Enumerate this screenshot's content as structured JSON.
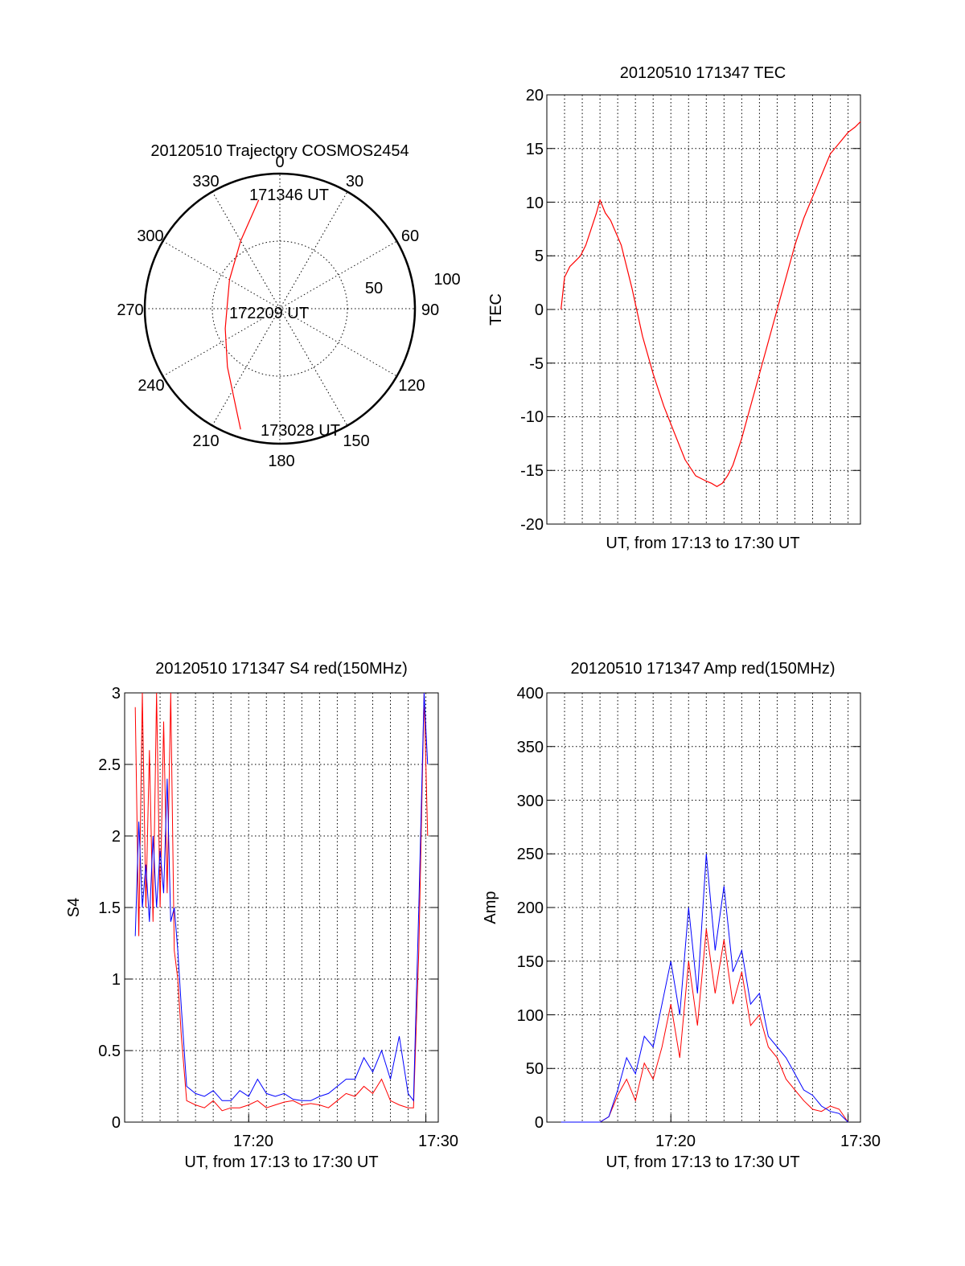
{
  "colors": {
    "red": "#ff0000",
    "blue": "#0000ff",
    "axis": "#000000",
    "background": "#ffffff"
  },
  "chart_data": [
    {
      "type": "polar",
      "title": "20120510 Trajectory COSMOS2454",
      "azimuth_labels": [
        "0",
        "30",
        "60",
        "90",
        "120",
        "150",
        "180",
        "210",
        "240",
        "270",
        "300",
        "330"
      ],
      "zenith_labels": [
        "50",
        "100"
      ],
      "grid": true,
      "track": {
        "color": "#ff0000",
        "points": [
          {
            "az": 349,
            "zen": 82
          },
          {
            "az": 330,
            "zen": 58
          },
          {
            "az": 300,
            "zen": 43
          },
          {
            "az": 275,
            "zen": 39
          },
          {
            "az": 250,
            "zen": 43
          },
          {
            "az": 222,
            "zen": 58
          },
          {
            "az": 203,
            "zen": 82
          },
          {
            "az": 198,
            "zen": 94
          }
        ]
      },
      "annotations": [
        {
          "text": "171346 UT",
          "az": 349,
          "zen": 82
        },
        {
          "text": "172209 UT",
          "az": 275,
          "zen": 39
        },
        {
          "text": "173028 UT",
          "az": 198,
          "zen": 94
        }
      ]
    },
    {
      "type": "line",
      "title": "20120510 171347 TEC",
      "xlabel": "UT, from 17:13 to 17:30 UT",
      "ylabel": "TEC",
      "xlim": [
        0,
        17.7
      ],
      "ylim": [
        -20,
        20
      ],
      "yticks": [
        "20",
        "15",
        "10",
        "5",
        "0",
        "-5",
        "-10",
        "-15",
        "-20"
      ],
      "grid": true,
      "series": [
        {
          "color": "#ff0000",
          "x": [
            0.8,
            1.0,
            1.3,
            1.6,
            1.9,
            2.2,
            2.5,
            2.8,
            3.0,
            3.3,
            3.6,
            4.2,
            4.8,
            5.4,
            6.0,
            6.6,
            7.2,
            7.8,
            8.4,
            9.0,
            9.3,
            9.6,
            9.9,
            10.2,
            10.5,
            11.0,
            11.5,
            12.0,
            12.5,
            13.0,
            13.5,
            14.0,
            14.5,
            15.0,
            15.5,
            16.0,
            16.5,
            17.0,
            17.4,
            17.7
          ],
          "y": [
            0,
            3,
            4,
            4.5,
            5,
            6,
            7.5,
            9,
            10.2,
            9,
            8.3,
            6,
            2,
            -2.5,
            -6,
            -9,
            -11.5,
            -14,
            -15.5,
            -16,
            -16.2,
            -16.5,
            -16.2,
            -15.5,
            -14.5,
            -12,
            -9,
            -6,
            -3,
            0,
            3,
            6,
            8.5,
            10.5,
            12.5,
            14.5,
            15.5,
            16.5,
            17.0,
            17.5
          ]
        }
      ]
    },
    {
      "type": "line",
      "title": "20120510 171347 S4 red(150MHz)",
      "xlabel": "UT, from 17:13 to 17:30 UT",
      "ylabel": "S4",
      "xlim": [
        0,
        17.7
      ],
      "ylim": [
        0,
        3
      ],
      "yticks": [
        "0",
        "0.5",
        "1",
        "1.5",
        "2",
        "2.5",
        "3"
      ],
      "xticks": [
        {
          "x": 7,
          "label": "17:20"
        },
        {
          "x": 17,
          "label": "17:30"
        }
      ],
      "grid": true,
      "series": [
        {
          "color": "#ff0000",
          "x": [
            0.6,
            0.8,
            1.0,
            1.2,
            1.4,
            1.6,
            1.8,
            2.0,
            2.2,
            2.4,
            2.6,
            2.8,
            3.0,
            3.2,
            3.5,
            4.0,
            4.5,
            5.0,
            5.5,
            6.0,
            6.5,
            7.0,
            7.5,
            8.0,
            8.5,
            9.0,
            9.5,
            10.0,
            10.5,
            11.0,
            11.5,
            12.0,
            12.5,
            13.0,
            13.5,
            14.0,
            14.5,
            15.0,
            15.5,
            16.0,
            16.3,
            16.6,
            16.9,
            17.1
          ],
          "y": [
            2.9,
            1.3,
            3.0,
            1.5,
            2.6,
            1.4,
            3.0,
            1.5,
            2.8,
            1.6,
            3.0,
            1.2,
            1.0,
            0.6,
            0.15,
            0.12,
            0.1,
            0.15,
            0.08,
            0.1,
            0.1,
            0.12,
            0.15,
            0.1,
            0.12,
            0.14,
            0.15,
            0.12,
            0.13,
            0.12,
            0.1,
            0.15,
            0.2,
            0.18,
            0.25,
            0.2,
            0.3,
            0.15,
            0.12,
            0.1,
            0.1,
            1.2,
            3.0,
            2.0
          ]
        },
        {
          "color": "#0000ff",
          "x": [
            0.6,
            0.8,
            1.0,
            1.2,
            1.4,
            1.6,
            1.8,
            2.0,
            2.2,
            2.4,
            2.6,
            2.8,
            3.0,
            3.2,
            3.5,
            4.0,
            4.5,
            5.0,
            5.5,
            6.0,
            6.5,
            7.0,
            7.5,
            8.0,
            8.5,
            9.0,
            9.5,
            10.0,
            10.5,
            11.0,
            11.5,
            12.0,
            12.5,
            13.0,
            13.5,
            14.0,
            14.5,
            15.0,
            15.5,
            16.0,
            16.3,
            16.6,
            16.9,
            17.1
          ],
          "y": [
            1.3,
            2.1,
            1.5,
            1.8,
            1.4,
            2.0,
            1.5,
            1.9,
            1.6,
            2.4,
            1.4,
            1.5,
            1.2,
            0.8,
            0.25,
            0.2,
            0.18,
            0.22,
            0.15,
            0.15,
            0.22,
            0.18,
            0.3,
            0.2,
            0.18,
            0.2,
            0.16,
            0.15,
            0.15,
            0.18,
            0.2,
            0.25,
            0.3,
            0.3,
            0.45,
            0.35,
            0.5,
            0.3,
            0.6,
            0.2,
            0.15,
            1.5,
            3.0,
            2.5
          ]
        }
      ]
    },
    {
      "type": "line",
      "title": "20120510 171347 Amp red(150MHz)",
      "xlabel": "UT, from 17:13 to 17:30 UT",
      "ylabel": "Amp",
      "xlim": [
        0,
        17.7
      ],
      "ylim": [
        0,
        400
      ],
      "yticks": [
        "0",
        "50",
        "100",
        "150",
        "200",
        "250",
        "300",
        "350",
        "400"
      ],
      "xticks": [
        {
          "x": 7,
          "label": "17:20"
        },
        {
          "x": 17,
          "label": "17:30"
        }
      ],
      "grid": true,
      "series": [
        {
          "color": "#ff0000",
          "x": [
            0.8,
            2.0,
            3.0,
            3.5,
            4.0,
            4.5,
            5.0,
            5.5,
            6.0,
            6.5,
            7.0,
            7.5,
            8.0,
            8.5,
            9.0,
            9.5,
            10.0,
            10.5,
            11.0,
            11.5,
            12.0,
            12.5,
            13.0,
            13.5,
            14.0,
            14.5,
            15.0,
            15.5,
            16.0,
            16.5,
            17.0
          ],
          "y": [
            0,
            0,
            0,
            5,
            25,
            40,
            20,
            55,
            40,
            70,
            110,
            60,
            150,
            90,
            180,
            120,
            170,
            110,
            140,
            90,
            100,
            70,
            60,
            40,
            30,
            20,
            12,
            10,
            15,
            12,
            0
          ]
        },
        {
          "color": "#0000ff",
          "x": [
            0.8,
            2.0,
            3.0,
            3.5,
            4.0,
            4.5,
            5.0,
            5.5,
            6.0,
            6.5,
            7.0,
            7.5,
            8.0,
            8.5,
            9.0,
            9.5,
            10.0,
            10.5,
            11.0,
            11.5,
            12.0,
            12.5,
            13.0,
            13.5,
            14.0,
            14.5,
            15.0,
            15.5,
            16.0,
            16.5,
            17.0
          ],
          "y": [
            0,
            0,
            0,
            5,
            30,
            60,
            45,
            80,
            70,
            110,
            150,
            100,
            200,
            120,
            250,
            160,
            220,
            140,
            160,
            110,
            120,
            80,
            70,
            60,
            45,
            30,
            25,
            15,
            10,
            8,
            0
          ]
        }
      ]
    }
  ]
}
